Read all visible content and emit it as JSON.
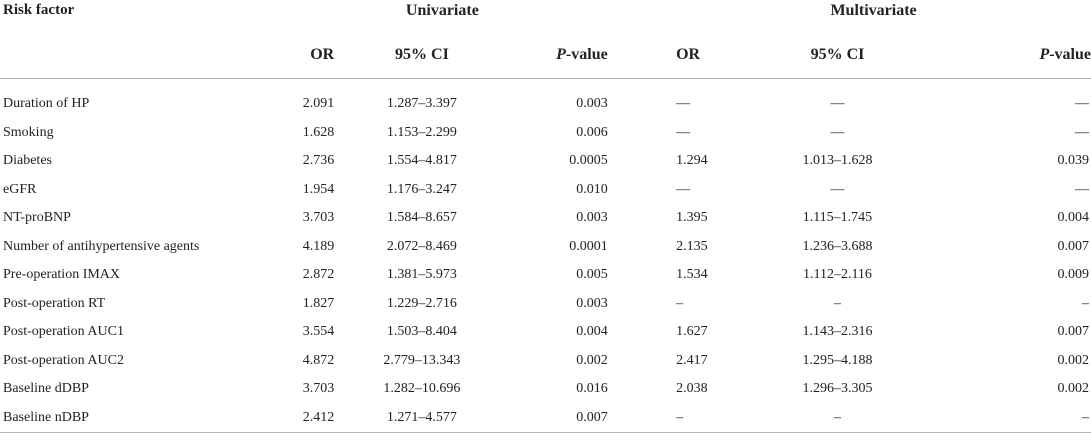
{
  "header": {
    "risk_factor": "Risk factor",
    "univariate": "Univariate",
    "multivariate": "Multivariate",
    "or": "OR",
    "ci": "95% CI",
    "p_prefix": "P",
    "p_suffix": "-value"
  },
  "rows": [
    {
      "factor": "Duration of HP",
      "or1": "2.091",
      "ci1": "1.287–3.397",
      "p1": "0.003",
      "or2": "—",
      "ci2": "—",
      "p2": "—"
    },
    {
      "factor": "Smoking",
      "or1": "1.628",
      "ci1": "1.153–2.299",
      "p1": "0.006",
      "or2": "—",
      "ci2": "—",
      "p2": "—"
    },
    {
      "factor": "Diabetes",
      "or1": "2.736",
      "ci1": "1.554–4.817",
      "p1": "0.0005",
      "or2": "1.294",
      "ci2": "1.013–1.628",
      "p2": "0.039"
    },
    {
      "factor": "eGFR",
      "or1": "1.954",
      "ci1": "1.176–3.247",
      "p1": "0.010",
      "or2": "—",
      "ci2": "—",
      "p2": "—"
    },
    {
      "factor": "NT-proBNP",
      "or1": "3.703",
      "ci1": "1.584–8.657",
      "p1": "0.003",
      "or2": "1.395",
      "ci2": "1.115–1.745",
      "p2": "0.004"
    },
    {
      "factor": "Number of antihypertensive agents",
      "or1": "4.189",
      "ci1": "2.072–8.469",
      "p1": "0.0001",
      "or2": "2.135",
      "ci2": "1.236–3.688",
      "p2": "0.007"
    },
    {
      "factor": "Pre-operation IMAX",
      "or1": "2.872",
      "ci1": "1.381–5.973",
      "p1": "0.005",
      "or2": "1.534",
      "ci2": "1.112–2.116",
      "p2": "0.009"
    },
    {
      "factor": "Post-operation RT",
      "or1": "1.827",
      "ci1": "1.229–2.716",
      "p1": "0.003",
      "or2": "–",
      "ci2": "–",
      "p2": "–"
    },
    {
      "factor": "Post-operation AUC1",
      "or1": "3.554",
      "ci1": "1.503–8.404",
      "p1": "0.004",
      "or2": "1.627",
      "ci2": "1.143–2.316",
      "p2": "0.007"
    },
    {
      "factor": "Post-operation AUC2",
      "or1": "4.872",
      "ci1": "2.779–13.343",
      "p1": "0.002",
      "or2": "2.417",
      "ci2": "1.295–4.188",
      "p2": "0.002"
    },
    {
      "factor": "Baseline dDBP",
      "or1": "3.703",
      "ci1": "1.282–10.696",
      "p1": "0.016",
      "or2": "2.038",
      "ci2": "1.296–3.305",
      "p2": "0.002"
    },
    {
      "factor": "Baseline nDBP",
      "or1": "2.412",
      "ci1": "1.271–4.577",
      "p1": "0.007",
      "or2": "–",
      "ci2": "–",
      "p2": "–"
    }
  ]
}
